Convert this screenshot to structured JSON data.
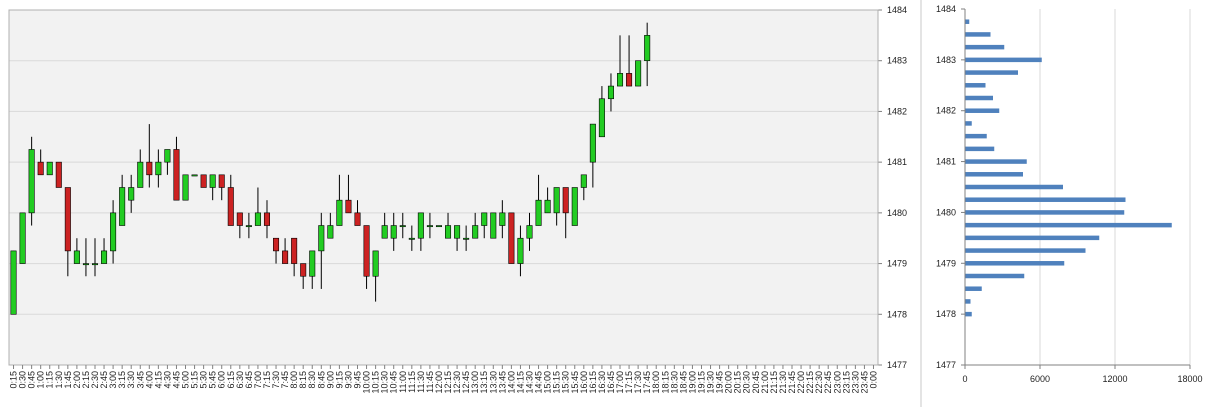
{
  "chart_data": [
    {
      "type": "candlestick",
      "title": "",
      "xlabel": "",
      "ylabel": "",
      "ylim": [
        1477,
        1484
      ],
      "yticks": [
        1477,
        1478,
        1479,
        1480,
        1481,
        1482,
        1483,
        1484
      ],
      "y_axis_position": "right",
      "grid": true,
      "legend": "none",
      "colors": {
        "plot_background": "#f2f2f2",
        "grid": "#d9d9d9",
        "up": "#22cc22",
        "down": "#cc2222",
        "wick": "#000000",
        "border": "#b0b0b0"
      },
      "x": [
        "0:15",
        "0:30",
        "0:45",
        "1:00",
        "1:15",
        "1:30",
        "1:45",
        "2:00",
        "2:15",
        "2:30",
        "2:45",
        "3:00",
        "3:15",
        "3:30",
        "3:45",
        "4:00",
        "4:15",
        "4:30",
        "4:45",
        "5:00",
        "5:15",
        "5:30",
        "5:45",
        "6:00",
        "6:15",
        "6:30",
        "6:45",
        "7:00",
        "7:15",
        "7:30",
        "7:45",
        "8:00",
        "8:15",
        "8:30",
        "8:45",
        "9:00",
        "9:15",
        "9:30",
        "9:45",
        "10:00",
        "10:15",
        "10:30",
        "10:45",
        "11:00",
        "11:15",
        "11:30",
        "11:45",
        "12:00",
        "12:15",
        "12:30",
        "12:45",
        "13:00",
        "13:15",
        "13:30",
        "13:45",
        "14:00",
        "14:15",
        "14:30",
        "14:45",
        "15:00",
        "15:15",
        "15:30",
        "15:45",
        "16:00",
        "16:15",
        "16:30",
        "16:45",
        "17:00",
        "17:15",
        "17:30",
        "17:45",
        "18:00",
        "18:15",
        "18:30",
        "18:45",
        "19:00",
        "19:15",
        "19:30",
        "19:45",
        "20:00",
        "20:15",
        "20:30",
        "20:45",
        "21:00",
        "21:15",
        "21:30",
        "21:45",
        "22:00",
        "22:15",
        "22:30",
        "22:45",
        "23:00",
        "23:15",
        "23:30",
        "23:45",
        "0:00"
      ],
      "candles": [
        {
          "o": 1478.0,
          "h": 1479.25,
          "l": 1478.0,
          "c": 1479.25
        },
        {
          "o": 1479.0,
          "h": 1480.0,
          "l": 1479.0,
          "c": 1480.0
        },
        {
          "o": 1480.0,
          "h": 1481.5,
          "l": 1479.75,
          "c": 1481.25
        },
        {
          "o": 1481.0,
          "h": 1481.25,
          "l": 1480.75,
          "c": 1480.75
        },
        {
          "o": 1480.75,
          "h": 1481.0,
          "l": 1480.75,
          "c": 1481.0
        },
        {
          "o": 1481.0,
          "h": 1481.0,
          "l": 1480.5,
          "c": 1480.5
        },
        {
          "o": 1480.5,
          "h": 1480.5,
          "l": 1478.75,
          "c": 1479.25
        },
        {
          "o": 1479.0,
          "h": 1479.5,
          "l": 1479.0,
          "c": 1479.25
        },
        {
          "o": 1479.0,
          "h": 1479.5,
          "l": 1478.75,
          "c": 1479.0
        },
        {
          "o": 1479.0,
          "h": 1479.5,
          "l": 1478.75,
          "c": 1479.0
        },
        {
          "o": 1479.0,
          "h": 1479.5,
          "l": 1479.0,
          "c": 1479.25
        },
        {
          "o": 1479.25,
          "h": 1480.25,
          "l": 1479.0,
          "c": 1480.0
        },
        {
          "o": 1479.75,
          "h": 1480.75,
          "l": 1479.75,
          "c": 1480.5
        },
        {
          "o": 1480.25,
          "h": 1480.75,
          "l": 1480.0,
          "c": 1480.5
        },
        {
          "o": 1480.5,
          "h": 1481.25,
          "l": 1480.5,
          "c": 1481.0
        },
        {
          "o": 1481.0,
          "h": 1481.75,
          "l": 1480.5,
          "c": 1480.75
        },
        {
          "o": 1480.75,
          "h": 1481.25,
          "l": 1480.5,
          "c": 1481.0
        },
        {
          "o": 1481.0,
          "h": 1481.25,
          "l": 1480.75,
          "c": 1481.25
        },
        {
          "o": 1481.25,
          "h": 1481.5,
          "l": 1480.25,
          "c": 1480.25
        },
        {
          "o": 1480.25,
          "h": 1480.75,
          "l": 1480.25,
          "c": 1480.75
        },
        {
          "o": 1480.75,
          "h": 1480.75,
          "l": 1480.75,
          "c": 1480.75
        },
        {
          "o": 1480.75,
          "h": 1480.75,
          "l": 1480.5,
          "c": 1480.5
        },
        {
          "o": 1480.5,
          "h": 1480.75,
          "l": 1480.25,
          "c": 1480.75
        },
        {
          "o": 1480.75,
          "h": 1480.75,
          "l": 1480.25,
          "c": 1480.5
        },
        {
          "o": 1480.5,
          "h": 1480.75,
          "l": 1479.75,
          "c": 1479.75
        },
        {
          "o": 1480.0,
          "h": 1480.0,
          "l": 1479.5,
          "c": 1479.75
        },
        {
          "o": 1479.75,
          "h": 1480.0,
          "l": 1479.5,
          "c": 1479.75
        },
        {
          "o": 1479.75,
          "h": 1480.5,
          "l": 1479.75,
          "c": 1480.0
        },
        {
          "o": 1480.0,
          "h": 1480.25,
          "l": 1479.5,
          "c": 1479.75
        },
        {
          "o": 1479.5,
          "h": 1479.5,
          "l": 1479.0,
          "c": 1479.25
        },
        {
          "o": 1479.25,
          "h": 1479.5,
          "l": 1479.0,
          "c": 1479.0
        },
        {
          "o": 1479.5,
          "h": 1479.5,
          "l": 1478.75,
          "c": 1479.0
        },
        {
          "o": 1479.0,
          "h": 1479.0,
          "l": 1478.5,
          "c": 1478.75
        },
        {
          "o": 1478.75,
          "h": 1479.25,
          "l": 1478.5,
          "c": 1479.25
        },
        {
          "o": 1479.25,
          "h": 1480.0,
          "l": 1478.5,
          "c": 1479.75
        },
        {
          "o": 1479.5,
          "h": 1480.0,
          "l": 1479.5,
          "c": 1479.75
        },
        {
          "o": 1479.75,
          "h": 1480.75,
          "l": 1479.75,
          "c": 1480.25
        },
        {
          "o": 1480.25,
          "h": 1480.75,
          "l": 1480.0,
          "c": 1480.0
        },
        {
          "o": 1480.0,
          "h": 1480.25,
          "l": 1479.75,
          "c": 1479.75
        },
        {
          "o": 1479.75,
          "h": 1479.75,
          "l": 1478.5,
          "c": 1478.75
        },
        {
          "o": 1478.75,
          "h": 1479.25,
          "l": 1478.25,
          "c": 1479.25
        },
        {
          "o": 1479.5,
          "h": 1480.0,
          "l": 1479.5,
          "c": 1479.75
        },
        {
          "o": 1479.5,
          "h": 1480.0,
          "l": 1479.25,
          "c": 1479.75
        },
        {
          "o": 1479.75,
          "h": 1480.0,
          "l": 1479.5,
          "c": 1479.75
        },
        {
          "o": 1479.5,
          "h": 1479.75,
          "l": 1479.25,
          "c": 1479.5
        },
        {
          "o": 1479.5,
          "h": 1480.0,
          "l": 1479.25,
          "c": 1480.0
        },
        {
          "o": 1479.75,
          "h": 1480.0,
          "l": 1479.5,
          "c": 1479.75
        },
        {
          "o": 1479.75,
          "h": 1479.75,
          "l": 1479.75,
          "c": 1479.75
        },
        {
          "o": 1479.5,
          "h": 1480.0,
          "l": 1479.5,
          "c": 1479.75
        },
        {
          "o": 1479.5,
          "h": 1479.75,
          "l": 1479.25,
          "c": 1479.75
        },
        {
          "o": 1479.5,
          "h": 1479.75,
          "l": 1479.25,
          "c": 1479.5
        },
        {
          "o": 1479.5,
          "h": 1480.0,
          "l": 1479.5,
          "c": 1479.75
        },
        {
          "o": 1479.75,
          "h": 1480.0,
          "l": 1479.5,
          "c": 1480.0
        },
        {
          "o": 1479.5,
          "h": 1480.0,
          "l": 1479.5,
          "c": 1480.0
        },
        {
          "o": 1479.75,
          "h": 1480.25,
          "l": 1479.5,
          "c": 1480.0
        },
        {
          "o": 1480.0,
          "h": 1480.0,
          "l": 1479.0,
          "c": 1479.0
        },
        {
          "o": 1479.0,
          "h": 1479.75,
          "l": 1478.75,
          "c": 1479.5
        },
        {
          "o": 1479.5,
          "h": 1480.0,
          "l": 1479.25,
          "c": 1479.75
        },
        {
          "o": 1479.75,
          "h": 1480.75,
          "l": 1479.75,
          "c": 1480.25
        },
        {
          "o": 1480.0,
          "h": 1480.5,
          "l": 1480.0,
          "c": 1480.25
        },
        {
          "o": 1480.0,
          "h": 1480.5,
          "l": 1479.75,
          "c": 1480.5
        },
        {
          "o": 1480.5,
          "h": 1480.5,
          "l": 1479.5,
          "c": 1480.0
        },
        {
          "o": 1479.75,
          "h": 1480.5,
          "l": 1479.75,
          "c": 1480.5
        },
        {
          "o": 1480.5,
          "h": 1480.75,
          "l": 1480.25,
          "c": 1480.75
        },
        {
          "o": 1481.0,
          "h": 1481.75,
          "l": 1480.5,
          "c": 1481.75
        },
        {
          "o": 1481.5,
          "h": 1482.5,
          "l": 1481.5,
          "c": 1482.25
        },
        {
          "o": 1482.25,
          "h": 1482.75,
          "l": 1482.0,
          "c": 1482.5
        },
        {
          "o": 1482.5,
          "h": 1483.5,
          "l": 1482.5,
          "c": 1482.75
        },
        {
          "o": 1482.75,
          "h": 1483.5,
          "l": 1482.5,
          "c": 1482.5
        },
        {
          "o": 1482.5,
          "h": 1483.0,
          "l": 1482.5,
          "c": 1483.0
        },
        {
          "o": 1483.0,
          "h": 1483.75,
          "l": 1482.5,
          "c": 1483.5
        }
      ]
    },
    {
      "type": "bar",
      "orientation": "horizontal",
      "title": "",
      "xlabel": "",
      "ylabel": "",
      "xlim": [
        0,
        18000
      ],
      "xticks": [
        0,
        6000,
        12000,
        18000
      ],
      "ylim": [
        1477,
        1484
      ],
      "yticks": [
        1477,
        1478,
        1479,
        1480,
        1481,
        1482,
        1483,
        1484
      ],
      "grid": true,
      "legend": "none",
      "colors": {
        "bar": "#4f81bd",
        "grid": "#d9d9d9",
        "axis": "#808080"
      },
      "prices": [
        1478.0,
        1478.25,
        1478.5,
        1478.75,
        1479.0,
        1479.25,
        1479.5,
        1479.75,
        1480.0,
        1480.25,
        1480.5,
        1480.75,
        1481.0,
        1481.25,
        1481.5,
        1481.75,
        1482.0,
        1482.25,
        1482.5,
        1482.75,
        1483.0,
        1483.25,
        1483.5,
        1483.75
      ],
      "values": [
        500,
        400,
        1300,
        4700,
        7900,
        9600,
        10700,
        16500,
        12700,
        12800,
        7800,
        4600,
        4900,
        2300,
        1700,
        500,
        2700,
        2200,
        1600,
        4200,
        6100,
        3100,
        2000,
        300
      ]
    }
  ]
}
